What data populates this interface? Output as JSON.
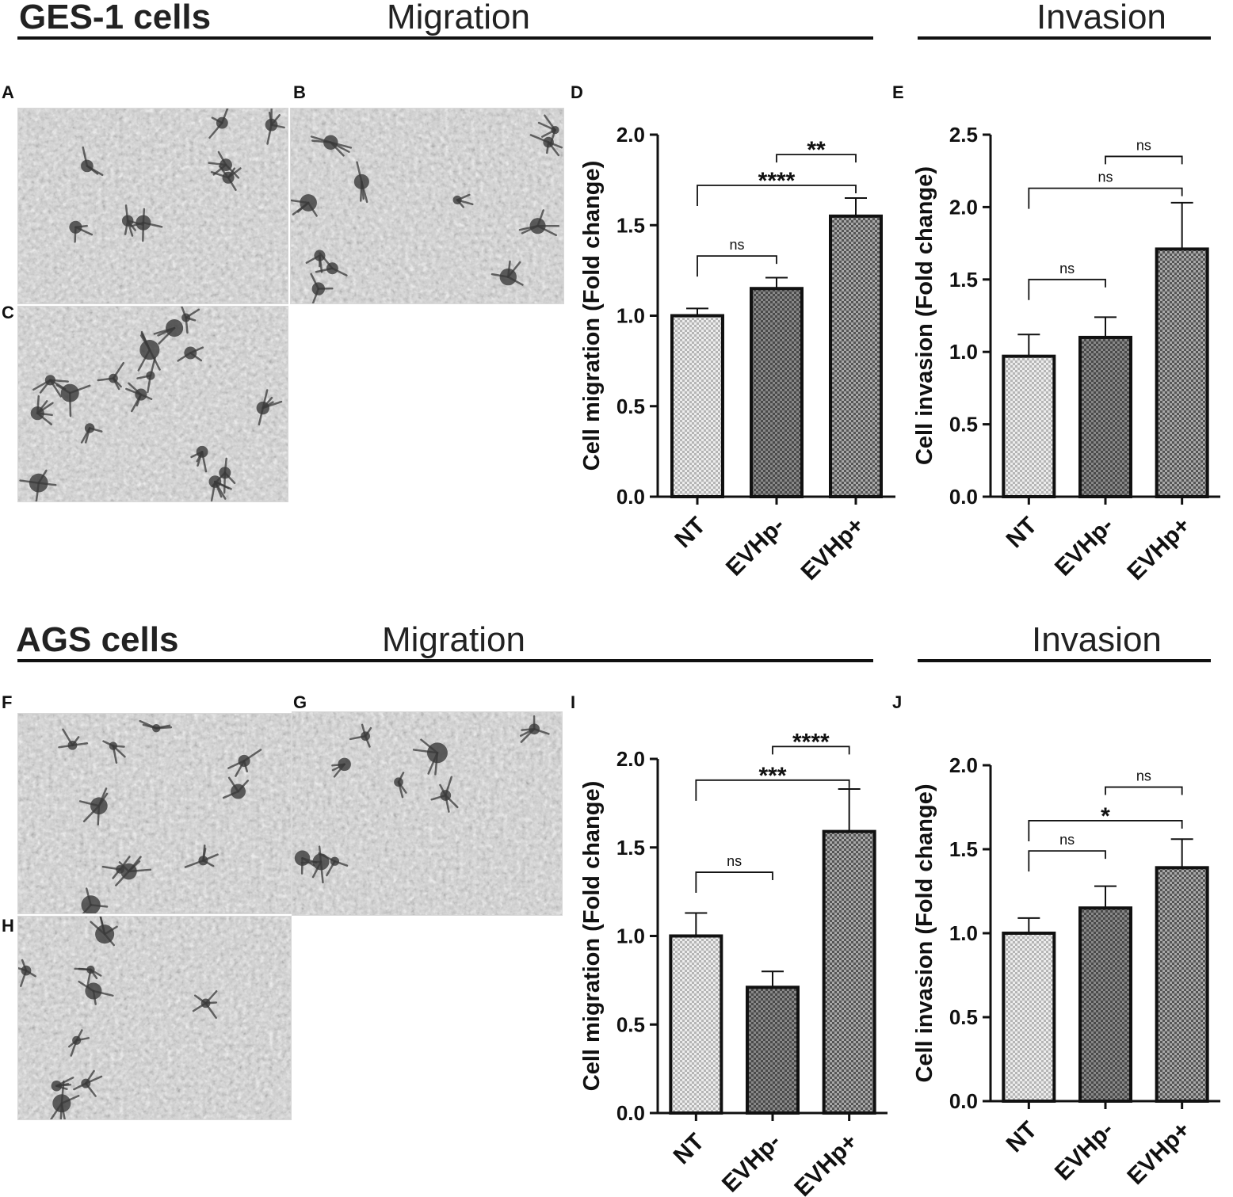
{
  "sections": {
    "top": {
      "title": "GES-1 cells",
      "migration_label": "Migration",
      "invasion_label": "Invasion"
    },
    "bottom": {
      "title": "AGS cells",
      "migration_label": "Migration",
      "invasion_label": "Invasion"
    }
  },
  "panel_letters": {
    "A": "A",
    "B": "B",
    "C": "C",
    "D": "D",
    "E": "E",
    "F": "F",
    "G": "G",
    "H": "H",
    "I": "I",
    "J": "J"
  },
  "colors": {
    "axis": "#111111",
    "bar_stroke": "#111111",
    "nt_fill": "#e6e6e6",
    "evhp_minus_fill": "#7a7a7a",
    "evhp_plus_fill": "#9a9a9a"
  },
  "chart_data": [
    {
      "id": "D",
      "type": "bar",
      "categories": [
        "NT",
        "EVHp-",
        "EVHp+"
      ],
      "values": [
        1.0,
        1.15,
        1.55
      ],
      "errors": [
        0.04,
        0.06,
        0.1
      ],
      "ylabel": "Cell migration (Fold change)",
      "ylim": [
        0,
        2.0
      ],
      "yticks": [
        "0.0",
        "0.5",
        "1.0",
        "1.5",
        "2.0"
      ],
      "comparisons": [
        {
          "from": 0,
          "to": 1,
          "label": "ns",
          "y": 1.33
        },
        {
          "from": 0,
          "to": 2,
          "label": "****",
          "y": 1.72
        },
        {
          "from": 1,
          "to": 2,
          "label": "**",
          "y": 1.89
        }
      ]
    },
    {
      "id": "E",
      "type": "bar",
      "categories": [
        "NT",
        "EVHp-",
        "EVHp+"
      ],
      "values": [
        0.97,
        1.1,
        1.71
      ],
      "errors": [
        0.15,
        0.14,
        0.32
      ],
      "ylabel": "Cell invasion (Fold change)",
      "ylim": [
        0,
        2.5
      ],
      "yticks": [
        "0.0",
        "0.5",
        "1.0",
        "1.5",
        "2.0",
        "2.5"
      ],
      "comparisons": [
        {
          "from": 0,
          "to": 1,
          "label": "ns",
          "y": 1.5
        },
        {
          "from": 0,
          "to": 2,
          "label": "ns",
          "y": 2.13
        },
        {
          "from": 1,
          "to": 2,
          "label": "ns",
          "y": 2.35
        }
      ]
    },
    {
      "id": "I",
      "type": "bar",
      "categories": [
        "NT",
        "EVHp-",
        "EVHp+"
      ],
      "values": [
        1.0,
        0.71,
        1.59
      ],
      "errors": [
        0.13,
        0.09,
        0.24
      ],
      "ylabel": "Cell migration (Fold change)",
      "ylim": [
        0,
        2.0
      ],
      "yticks": [
        "0.0",
        "0.5",
        "1.0",
        "1.5",
        "2.0"
      ],
      "comparisons": [
        {
          "from": 0,
          "to": 1,
          "label": "ns",
          "y": 1.36
        },
        {
          "from": 0,
          "to": 2,
          "label": "***",
          "y": 1.88
        },
        {
          "from": 1,
          "to": 2,
          "label": "****",
          "y": 2.07
        }
      ]
    },
    {
      "id": "J",
      "type": "bar",
      "categories": [
        "NT",
        "EVHp-",
        "EVHp+"
      ],
      "values": [
        1.0,
        1.15,
        1.39
      ],
      "errors": [
        0.09,
        0.13,
        0.17
      ],
      "ylabel": "Cell invasion (Fold change)",
      "ylim": [
        0,
        2.0
      ],
      "yticks": [
        "0.0",
        "0.5",
        "1.0",
        "1.5",
        "2.0"
      ],
      "comparisons": [
        {
          "from": 0,
          "to": 1,
          "label": "ns",
          "y": 1.49
        },
        {
          "from": 0,
          "to": 2,
          "label": "*",
          "y": 1.67
        },
        {
          "from": 1,
          "to": 2,
          "label": "ns",
          "y": 1.87
        }
      ]
    }
  ]
}
